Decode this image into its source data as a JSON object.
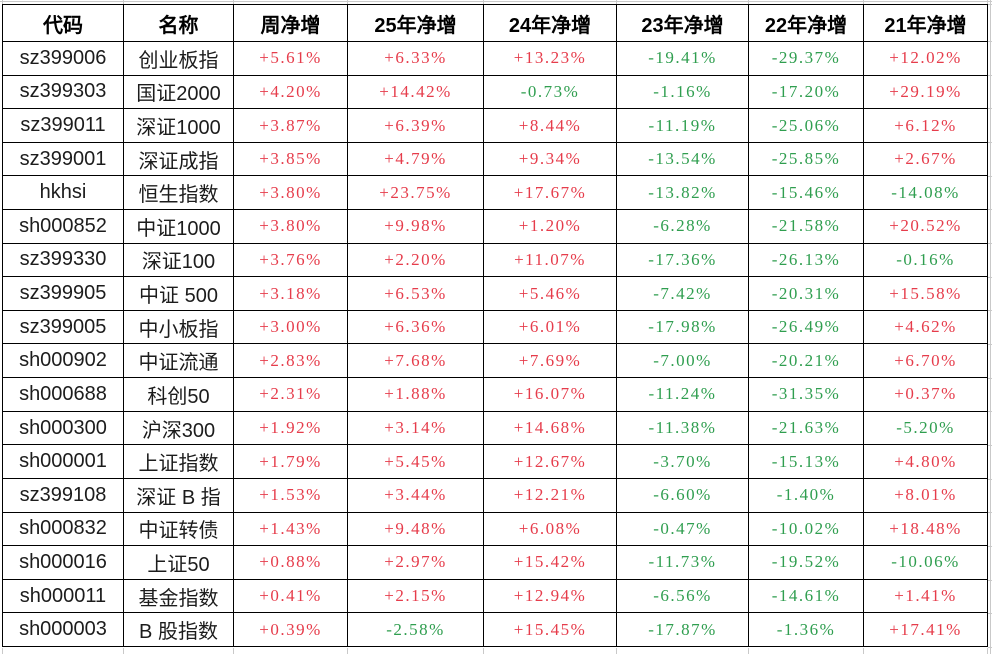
{
  "table": {
    "columns": [
      "代码",
      "名称",
      "周净增",
      "25年净增",
      "24年净增",
      "23年净增",
      "22年净增",
      "21年净增"
    ],
    "rows": [
      {
        "code": "sz399006",
        "name": "创业板指",
        "values": [
          "+5.61%",
          "+6.33%",
          "+13.23%",
          "-19.41%",
          "-29.37%",
          "+12.02%"
        ]
      },
      {
        "code": "sz399303",
        "name": "国证2000",
        "values": [
          "+4.20%",
          "+14.42%",
          "-0.73%",
          "-1.16%",
          "-17.20%",
          "+29.19%"
        ]
      },
      {
        "code": "sz399011",
        "name": "深证1000",
        "values": [
          "+3.87%",
          "+6.39%",
          "+8.44%",
          "-11.19%",
          "-25.06%",
          "+6.12%"
        ]
      },
      {
        "code": "sz399001",
        "name": "深证成指",
        "values": [
          "+3.85%",
          "+4.79%",
          "+9.34%",
          "-13.54%",
          "-25.85%",
          "+2.67%"
        ]
      },
      {
        "code": "hkhsi",
        "name": "恒生指数",
        "values": [
          "+3.80%",
          "+23.75%",
          "+17.67%",
          "-13.82%",
          "-15.46%",
          "-14.08%"
        ]
      },
      {
        "code": "sh000852",
        "name": "中证1000",
        "values": [
          "+3.80%",
          "+9.98%",
          "+1.20%",
          "-6.28%",
          "-21.58%",
          "+20.52%"
        ]
      },
      {
        "code": "sz399330",
        "name": "深证100",
        "values": [
          "+3.76%",
          "+2.20%",
          "+11.07%",
          "-17.36%",
          "-26.13%",
          "-0.16%"
        ]
      },
      {
        "code": "sz399905",
        "name": "中证 500",
        "values": [
          "+3.18%",
          "+6.53%",
          "+5.46%",
          "-7.42%",
          "-20.31%",
          "+15.58%"
        ]
      },
      {
        "code": "sz399005",
        "name": "中小板指",
        "values": [
          "+3.00%",
          "+6.36%",
          "+6.01%",
          "-17.98%",
          "-26.49%",
          "+4.62%"
        ]
      },
      {
        "code": "sh000902",
        "name": "中证流通",
        "values": [
          "+2.83%",
          "+7.68%",
          "+7.69%",
          "-7.00%",
          "-20.21%",
          "+6.70%"
        ]
      },
      {
        "code": "sh000688",
        "name": "科创50",
        "values": [
          "+2.31%",
          "+1.88%",
          "+16.07%",
          "-11.24%",
          "-31.35%",
          "+0.37%"
        ]
      },
      {
        "code": "sh000300",
        "name": "沪深300",
        "values": [
          "+1.92%",
          "+3.14%",
          "+14.68%",
          "-11.38%",
          "-21.63%",
          "-5.20%"
        ]
      },
      {
        "code": "sh000001",
        "name": "上证指数",
        "values": [
          "+1.79%",
          "+5.45%",
          "+12.67%",
          "-3.70%",
          "-15.13%",
          "+4.80%"
        ]
      },
      {
        "code": "sz399108",
        "name": "深证 B 指",
        "values": [
          "+1.53%",
          "+3.44%",
          "+12.21%",
          "-6.60%",
          "-1.40%",
          "+8.01%"
        ]
      },
      {
        "code": "sh000832",
        "name": "中证转债",
        "values": [
          "+1.43%",
          "+9.48%",
          "+6.08%",
          "-0.47%",
          "-10.02%",
          "+18.48%"
        ]
      },
      {
        "code": "sh000016",
        "name": "上证50",
        "values": [
          "+0.88%",
          "+2.97%",
          "+15.42%",
          "-11.73%",
          "-19.52%",
          "-10.06%"
        ]
      },
      {
        "code": "sh000011",
        "name": "基金指数",
        "values": [
          "+0.41%",
          "+2.15%",
          "+12.94%",
          "-6.56%",
          "-14.61%",
          "+1.41%"
        ]
      },
      {
        "code": "sh000003",
        "name": "B 股指数",
        "values": [
          "+0.39%",
          "-2.58%",
          "+15.45%",
          "-17.87%",
          "-1.36%",
          "+17.41%"
        ]
      }
    ]
  },
  "colors": {
    "positive": "#e63c4b",
    "negative": "#2f9e4f",
    "border": "#000000",
    "gridline": "#c9c9c9",
    "background": "#ffffff",
    "header_text": "#000000"
  }
}
